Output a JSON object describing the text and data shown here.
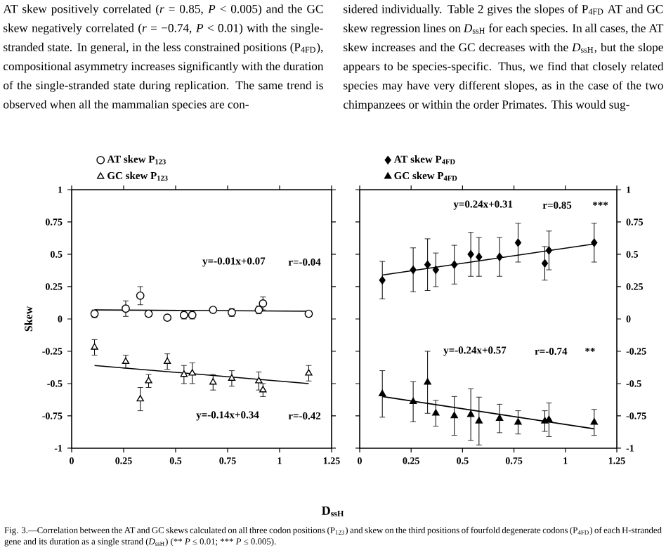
{
  "chart_data": [
    {
      "type": "scatter",
      "xlabel": "D$_{ssH}$",
      "ylabel": "Skew",
      "xlim": [
        0,
        1.25
      ],
      "xticks": [
        0,
        0.25,
        0.5,
        0.75,
        1,
        1.25
      ],
      "ylim": [
        -1,
        1
      ],
      "yticks": [
        -1,
        -0.75,
        -0.5,
        -0.25,
        0,
        0.25,
        0.5,
        0.75,
        1
      ],
      "legend": "top",
      "grid": false,
      "annotations": [
        "AT skew positively correlated (*r* = 0.85, *P* < 0.005) and the GC skew negatively correlated (*r* = −0.74, *P* < 0.01) with the single-stranded state. In general, in the less constrained positions (P$_{4FD}$), compositional asymmetry increases significantly with the duration of the single-stranded state during replication. The same trend is observed when all the mammalian species are con-",
        "sidered individually. Table 2 gives the slopes of P$_{4FD}$ AT and GC skew regression lines on *D*$_{ssH}$ for each species. In all cases, the AT skew increases and the GC decreases with the *D*$_{ssH}$, but the slope appears to be species-specific. Thus, we find that closely related species may have very different slopes, as in the case of the two chimpanzees or within the order Primates. This would sug-",
        "Fig. 3.—Correlation between the AT and GC skews calculated on all three codon positions (P$_{123}$) and skew on the third positions of fourfold degenerate codons (P$_{4FD}$) of each H-stranded gene and its duration as a single strand (*D*$_{ssH}$) (** *P* ≤ 0.01; *** *P* ≤ 0.005).",
        "y=-0.01x+0.07",
        "r=-0.04",
        "y=-0.14x+0.34",
        "r=-0.42"
      ],
      "series": [
        {
          "name": "AT skew P$_{123}$",
          "marker": "circle",
          "color": "#ffffff",
          "x": [
            0.11,
            0.26,
            0.33,
            0.37,
            0.46,
            0.54,
            0.58,
            0.68,
            0.77,
            0.9,
            0.92,
            1.14
          ],
          "values": [
            0.04,
            0.08,
            0.18,
            0.04,
            0.01,
            0.03,
            0.03,
            0.07,
            0.05,
            0.07,
            0.12,
            0.04
          ],
          "errors": [
            0.03,
            0.06,
            0.07,
            0.02,
            0.02,
            0.03,
            0.03,
            0.02,
            0.03,
            0.03,
            0.05,
            0.02
          ]
        },
        {
          "name": "GC skew P$_{123}$",
          "marker": "triangle",
          "color": "#ffffff",
          "x": [
            0.11,
            0.26,
            0.33,
            0.37,
            0.46,
            0.54,
            0.58,
            0.68,
            0.77,
            0.9,
            0.92,
            1.14
          ],
          "values": [
            -0.22,
            -0.33,
            -0.62,
            -0.48,
            -0.33,
            -0.43,
            -0.42,
            -0.49,
            -0.46,
            -0.48,
            -0.55,
            -0.42
          ],
          "errors": [
            0.06,
            0.05,
            0.09,
            0.05,
            0.06,
            0.07,
            0.08,
            0.06,
            0.06,
            0.07,
            0.05,
            0.06
          ]
        },
        {
          "type": "line",
          "color": "#000000",
          "x": [
            0.11,
            1.14
          ],
          "values": [
            0.07,
            0.06
          ]
        },
        {
          "type": "line",
          "color": "#000000",
          "x": [
            0.11,
            1.14
          ],
          "values": [
            -0.36,
            -0.5
          ]
        }
      ]
    },
    {
      "type": "scatter",
      "xlim": [
        0,
        1.25
      ],
      "xticks": [
        0,
        0.25,
        0.5,
        0.75,
        1,
        1.25
      ],
      "y2lim": [
        -1,
        1
      ],
      "y2ticks": [
        -1,
        -0.75,
        -0.5,
        -0.25,
        0,
        0.25,
        0.5,
        0.75,
        1
      ],
      "legend": "top",
      "grid": false,
      "annotations": [
        "y=0.24x+0.31",
        "r=0.85",
        "***",
        "y=-0.24x+0.57",
        "r=-0.74",
        "**"
      ],
      "series": [
        {
          "name": "AT skew P$_{4FD}$",
          "axis": "y2",
          "marker": "diamond",
          "color": "#000000",
          "x": [
            0.11,
            0.26,
            0.33,
            0.37,
            0.46,
            0.54,
            0.58,
            0.68,
            0.77,
            0.9,
            0.92,
            1.14
          ],
          "values": [
            0.3,
            0.38,
            0.42,
            0.38,
            0.42,
            0.5,
            0.48,
            0.48,
            0.59,
            0.43,
            0.53,
            0.59
          ],
          "errors": [
            0.145,
            0.17,
            0.2,
            0.13,
            0.15,
            0.17,
            0.15,
            0.15,
            0.15,
            0.13,
            0.15,
            0.15
          ]
        },
        {
          "name": "GC skew P$_{4FD}$",
          "axis": "y2",
          "marker": "triangle",
          "color": "#000000",
          "x": [
            0.11,
            0.26,
            0.33,
            0.37,
            0.46,
            0.54,
            0.58,
            0.68,
            0.77,
            0.9,
            0.92,
            1.14
          ],
          "values": [
            -0.58,
            -0.64,
            -0.49,
            -0.73,
            -0.75,
            -0.74,
            -0.79,
            -0.77,
            -0.8,
            -0.79,
            -0.78,
            -0.8
          ],
          "errors": [
            0.18,
            0.155,
            0.24,
            0.1,
            0.15,
            0.2,
            0.185,
            0.11,
            0.09,
            0.08,
            0.13,
            0.1
          ]
        },
        {
          "type": "line",
          "axis": "y2",
          "color": "#000000",
          "x": [
            0.11,
            1.14
          ],
          "values": [
            0.34,
            0.58
          ]
        },
        {
          "type": "line",
          "axis": "y2",
          "color": "#000000",
          "x": [
            0.11,
            1.14
          ],
          "values": [
            -0.6,
            -0.85
          ]
        }
      ]
    }
  ]
}
